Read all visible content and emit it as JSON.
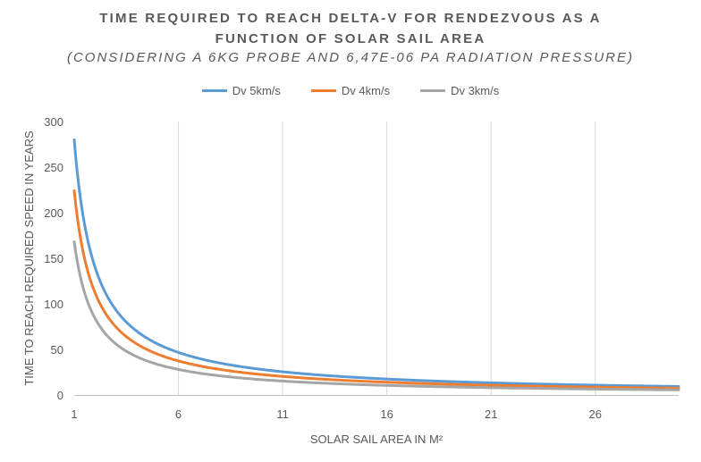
{
  "chart_data": {
    "type": "line",
    "title": "TIME REQUIRED TO REACH DELTA-V FOR RENDEZVOUS AS A",
    "title_line2": "FUNCTION OF SOLAR SAIL AREA",
    "subtitle": "(CONSIDERING A 6KG PROBE AND 6,47E-06 PA RADIATION PRESSURE)",
    "xlabel": "SOLAR SAIL AREA IN M²",
    "ylabel": "TIME TO REACH REQUIRED SPEED IN YEARS",
    "xlim": [
      1,
      30
    ],
    "ylim": [
      0,
      300
    ],
    "x_ticks": [
      "1",
      "6",
      "11",
      "16",
      "21",
      "26"
    ],
    "y_ticks": [
      "0",
      "50",
      "100",
      "150",
      "200",
      "250",
      "300"
    ],
    "grid": "vertical",
    "legend_position": "top",
    "series": [
      {
        "name": "Dv 5km/s",
        "color": "#5B9BD5",
        "coefficient": 280
      },
      {
        "name": "Dv 4km/s",
        "color": "#ED7D31",
        "coefficient": 224
      },
      {
        "name": "Dv 3km/s",
        "color": "#A5A5A5",
        "coefficient": 168
      }
    ],
    "formula": "y = coefficient / x"
  }
}
